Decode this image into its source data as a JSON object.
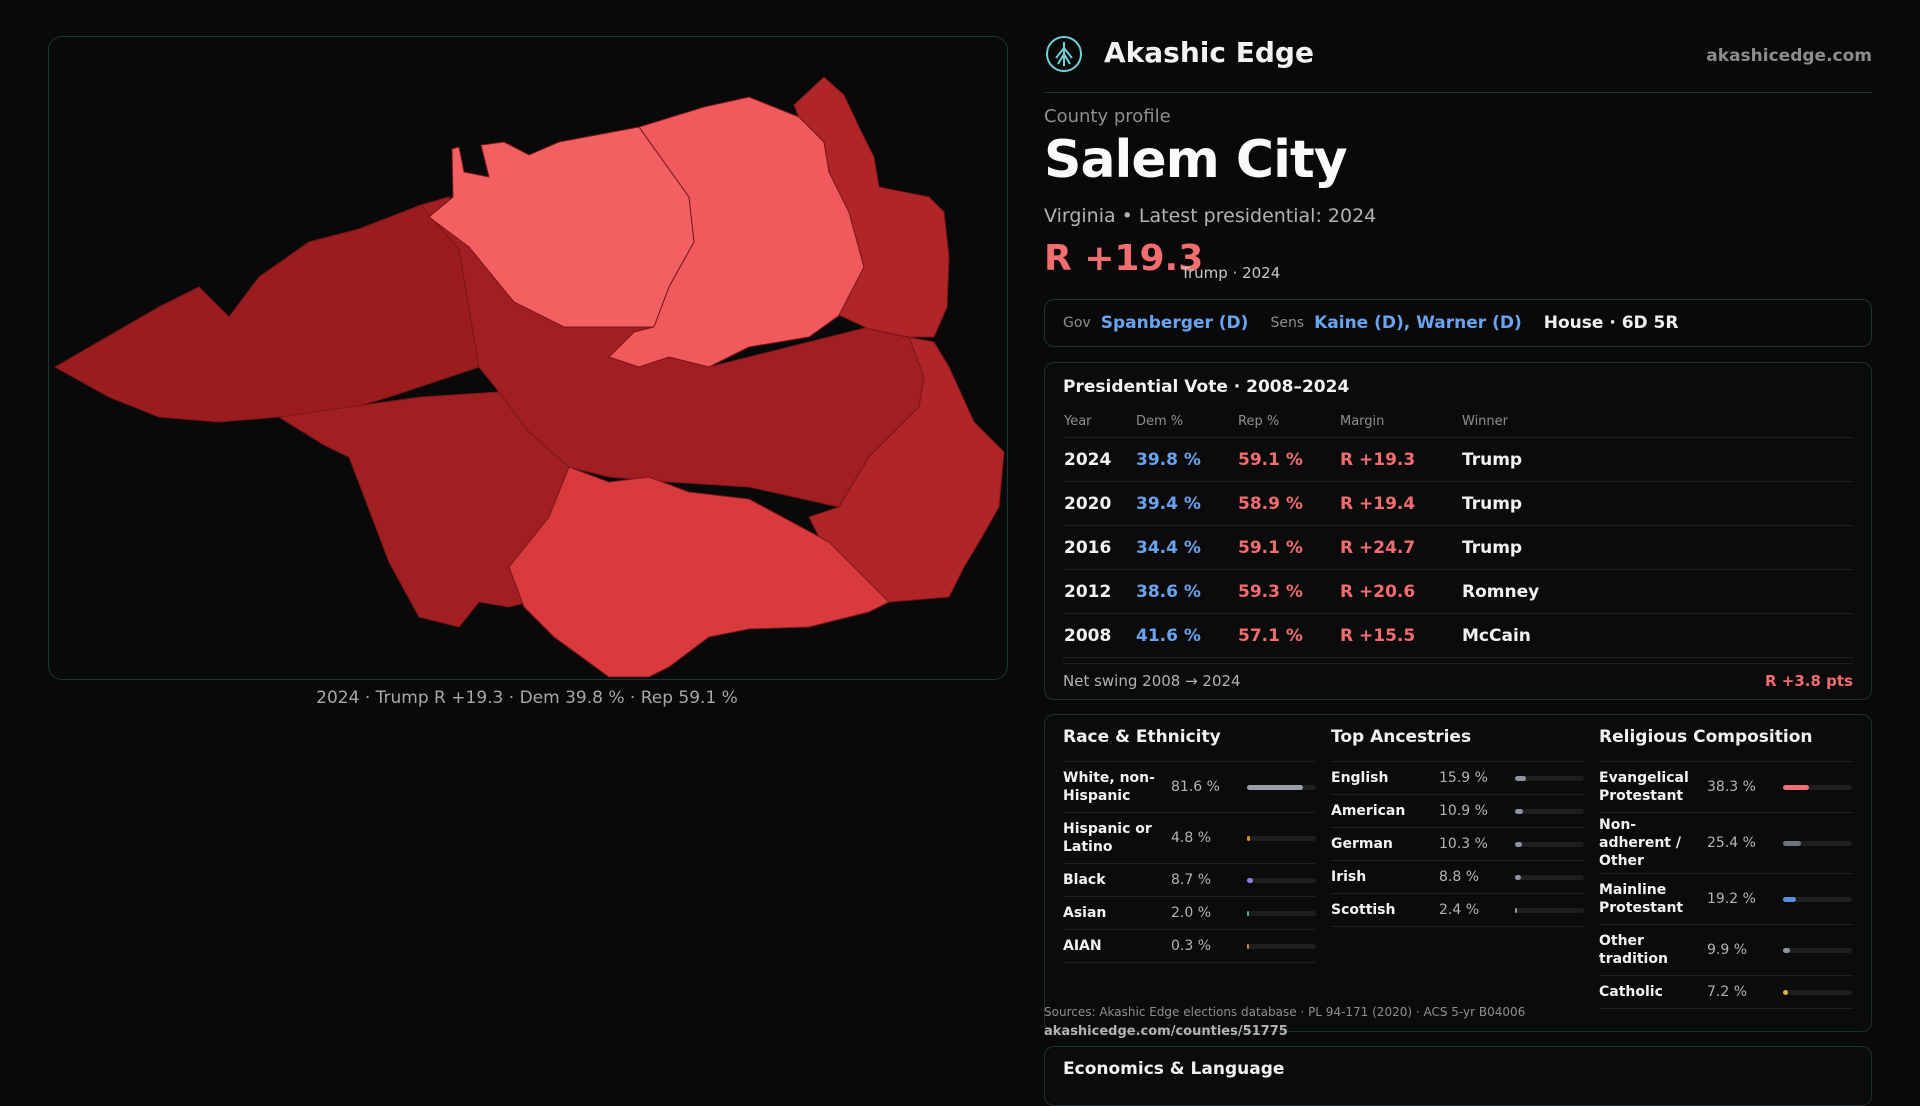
{
  "map": {
    "caption": "2024 · Trump R +19.3 · Dem 39.8 % · Rep 59.1 %",
    "precinct_colors": [
      "#9a1c1f",
      "#a11f23",
      "#b02528",
      "#e9494c",
      "#f05a5c",
      "#f36062",
      "#d83a3d"
    ]
  },
  "header": {
    "brand": "Akashic Edge",
    "domain": "akashicedge.com",
    "logo_icon": "tree-globe-icon"
  },
  "profile": {
    "eyebrow": "County profile",
    "title": "Salem City",
    "subtitle": "Virginia • Latest presidential: 2024",
    "margin": "R +19.3",
    "margin_note": "Trump · 2024"
  },
  "officials": {
    "gov_label": "Gov",
    "gov": "Spanberger (D)",
    "sens_label": "Sens",
    "sens": "Kaine (D), Warner (D)",
    "house": "House · 6D 5R"
  },
  "vote": {
    "title": "Presidential Vote · 2008–2024",
    "headers": {
      "year": "Year",
      "dem": "Dem %",
      "rep": "Rep %",
      "margin": "Margin",
      "winner": "Winner"
    },
    "rows": [
      {
        "year": "2024",
        "dem": "39.8 %",
        "rep": "59.1 %",
        "margin": "R +19.3",
        "winner": "Trump"
      },
      {
        "year": "2020",
        "dem": "39.4 %",
        "rep": "58.9 %",
        "margin": "R +19.4",
        "winner": "Trump"
      },
      {
        "year": "2016",
        "dem": "34.4 %",
        "rep": "59.1 %",
        "margin": "R +24.7",
        "winner": "Trump"
      },
      {
        "year": "2012",
        "dem": "38.6 %",
        "rep": "59.3 %",
        "margin": "R +20.6",
        "winner": "Romney"
      },
      {
        "year": "2008",
        "dem": "41.6 %",
        "rep": "57.1 %",
        "margin": "R +15.5",
        "winner": "McCain"
      }
    ],
    "swing_label": "Net swing 2008 → 2024",
    "swing_value": "R +3.8 pts"
  },
  "race": {
    "title": "Race & Ethnicity",
    "items": [
      {
        "name": "White, non-Hispanic",
        "pct": "81.6 %",
        "value": 81.6,
        "color": "#9aa0ab"
      },
      {
        "name": "Hispanic or Latino",
        "pct": "4.8 %",
        "value": 4.8,
        "color": "#e08a2a"
      },
      {
        "name": "Black",
        "pct": "8.7 %",
        "value": 8.7,
        "color": "#8e7fe0"
      },
      {
        "name": "Asian",
        "pct": "2.0 %",
        "value": 2.0,
        "color": "#3fb58f"
      },
      {
        "name": "AIAN",
        "pct": "0.3 %",
        "value": 0.3,
        "color": "#c08a4a"
      }
    ]
  },
  "ancestry": {
    "title": "Top Ancestries",
    "items": [
      {
        "name": "English",
        "pct": "15.9 %",
        "value": 15.9,
        "color": "#8d93a0"
      },
      {
        "name": "American",
        "pct": "10.9 %",
        "value": 10.9,
        "color": "#8d93a0"
      },
      {
        "name": "German",
        "pct": "10.3 %",
        "value": 10.3,
        "color": "#8d93a0"
      },
      {
        "name": "Irish",
        "pct": "8.8 %",
        "value": 8.8,
        "color": "#8d93a0"
      },
      {
        "name": "Scottish",
        "pct": "2.4 %",
        "value": 2.4,
        "color": "#8d93a0"
      }
    ]
  },
  "religion": {
    "title": "Religious Composition",
    "items": [
      {
        "name": "Evangelical Protestant",
        "pct": "38.3 %",
        "value": 38.3,
        "color": "#f26d6f"
      },
      {
        "name": "Non-adherent / Other",
        "pct": "25.4 %",
        "value": 25.4,
        "color": "#6f7480"
      },
      {
        "name": "Mainline Protestant",
        "pct": "19.2 %",
        "value": 19.2,
        "color": "#5b8fe0"
      },
      {
        "name": "Other tradition",
        "pct": "9.9 %",
        "value": 9.9,
        "color": "#8d93a0"
      },
      {
        "name": "Catholic",
        "pct": "7.2 %",
        "value": 7.2,
        "color": "#e0b23a"
      }
    ]
  },
  "sources": {
    "text": "Sources: Akashic Edge elections database · PL 94-171 (2020) · ACS 5-yr B04006",
    "url": "akashicedge.com/counties/51775"
  },
  "econ": {
    "title": "Economics & Language"
  }
}
